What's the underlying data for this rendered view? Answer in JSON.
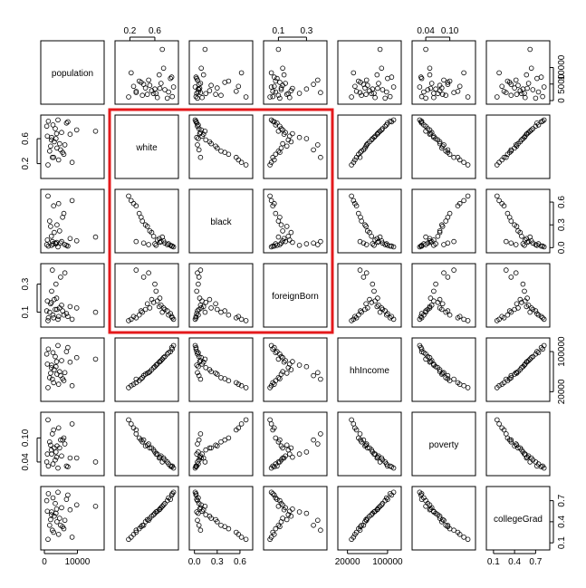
{
  "chart_data": {
    "type": "scatter",
    "variables": [
      {
        "name": "population",
        "range": [
          0,
          17000
        ]
      },
      {
        "name": "white",
        "range": [
          0.02,
          0.92
        ]
      },
      {
        "name": "black",
        "range": [
          -0.02,
          0.72
        ]
      },
      {
        "name": "foreignBorn",
        "range": [
          0.02,
          0.42
        ]
      },
      {
        "name": "hhIncome",
        "range": [
          8000,
          120000
        ]
      },
      {
        "name": "poverty",
        "range": [
          0.015,
          0.155
        ]
      },
      {
        "name": "collegeGrad",
        "range": [
          0.05,
          0.85
        ]
      }
    ],
    "axis_ticks": {
      "top": [
        {
          "panel": 1,
          "values": [
            0.2,
            0.6
          ],
          "labels": [
            "0.2",
            "0.6"
          ]
        },
        {
          "panel": 3,
          "values": [
            0.1,
            0.3
          ],
          "labels": [
            "0.1",
            "0.3"
          ]
        },
        {
          "panel": 5,
          "values": [
            0.04,
            0.1
          ],
          "labels": [
            "0.04",
            "0.10"
          ]
        }
      ],
      "right": [
        {
          "panel": 0,
          "values": [
            0,
            5000,
            10000
          ],
          "labels": [
            "0",
            "5000",
            "10000"
          ]
        },
        {
          "panel": 2,
          "values": [
            0.0,
            0.3,
            0.6
          ],
          "labels": [
            "0.0",
            "0.3",
            "0.6"
          ]
        },
        {
          "panel": 4,
          "values": [
            20000,
            100000
          ],
          "labels": [
            "20000",
            "100000"
          ]
        },
        {
          "panel": 6,
          "values": [
            0.1,
            0.4,
            0.7
          ],
          "labels": [
            "0.1",
            "0.4",
            "0.7"
          ]
        }
      ],
      "bottom": [
        {
          "panel": 0,
          "values": [
            0,
            10000
          ],
          "labels": [
            "0",
            "10000"
          ]
        },
        {
          "panel": 2,
          "values": [
            0.0,
            0.3,
            0.6
          ],
          "labels": [
            "0.0",
            "0.3",
            "0.6"
          ]
        },
        {
          "panel": 4,
          "values": [
            20000,
            100000
          ],
          "labels": [
            "20000",
            "100000"
          ]
        },
        {
          "panel": 6,
          "values": [
            0.1,
            0.4,
            0.7
          ],
          "labels": [
            "0.1",
            "0.4",
            "0.7"
          ]
        }
      ],
      "left": [
        {
          "panel": 1,
          "values": [
            0.2,
            0.6
          ],
          "labels": [
            "0.2",
            "0.6"
          ]
        },
        {
          "panel": 3,
          "values": [
            0.1,
            0.3
          ],
          "labels": [
            "0.1",
            "0.3"
          ]
        },
        {
          "panel": 5,
          "values": [
            0.04,
            0.1
          ],
          "labels": [
            "0.04",
            "0.10"
          ]
        }
      ]
    },
    "highlight": {
      "variables": [
        "white",
        "black",
        "foreignBorn"
      ],
      "color": "#e41a1c"
    },
    "observations": [
      {
        "population": 1200,
        "white": 0.88,
        "black": 0.02,
        "foreignBorn": 0.06,
        "hhIncome": 105000,
        "poverty": 0.03,
        "collegeGrad": 0.8
      },
      {
        "population": 2600,
        "white": 0.82,
        "black": 0.05,
        "foreignBorn": 0.08,
        "hhIncome": 98000,
        "poverty": 0.035,
        "collegeGrad": 0.74
      },
      {
        "population": 4100,
        "white": 0.9,
        "black": 0.01,
        "foreignBorn": 0.05,
        "hhIncome": 112000,
        "poverty": 0.025,
        "collegeGrad": 0.82
      },
      {
        "population": 3300,
        "white": 0.76,
        "black": 0.06,
        "foreignBorn": 0.12,
        "hhIncome": 90000,
        "poverty": 0.045,
        "collegeGrad": 0.66
      },
      {
        "population": 5200,
        "white": 0.7,
        "black": 0.08,
        "foreignBorn": 0.15,
        "hhIncome": 82000,
        "poverty": 0.055,
        "collegeGrad": 0.6
      },
      {
        "population": 6700,
        "white": 0.85,
        "black": 0.03,
        "foreignBorn": 0.09,
        "hhIncome": 100000,
        "poverty": 0.03,
        "collegeGrad": 0.72
      },
      {
        "population": 900,
        "white": 0.64,
        "black": 0.1,
        "foreignBorn": 0.18,
        "hhIncome": 75000,
        "poverty": 0.06,
        "collegeGrad": 0.55
      },
      {
        "population": 2100,
        "white": 0.58,
        "black": 0.15,
        "foreignBorn": 0.17,
        "hhIncome": 68000,
        "poverty": 0.07,
        "collegeGrad": 0.5
      },
      {
        "population": 7800,
        "white": 0.67,
        "black": 0.12,
        "foreignBorn": 0.14,
        "hhIncome": 79000,
        "poverty": 0.05,
        "collegeGrad": 0.57
      },
      {
        "population": 4600,
        "white": 0.52,
        "black": 0.22,
        "foreignBorn": 0.13,
        "hhIncome": 60000,
        "poverty": 0.075,
        "collegeGrad": 0.45
      },
      {
        "population": 3800,
        "white": 0.45,
        "black": 0.3,
        "foreignBorn": 0.12,
        "hhIncome": 55000,
        "poverty": 0.08,
        "collegeGrad": 0.4
      },
      {
        "population": 1600,
        "white": 0.4,
        "black": 0.35,
        "foreignBorn": 0.1,
        "hhIncome": 48000,
        "poverty": 0.09,
        "collegeGrad": 0.35
      },
      {
        "population": 5900,
        "white": 0.35,
        "black": 0.45,
        "foreignBorn": 0.08,
        "hhIncome": 42000,
        "poverty": 0.1,
        "collegeGrad": 0.3
      },
      {
        "population": 2800,
        "white": 0.3,
        "black": 0.55,
        "foreignBorn": 0.06,
        "hhIncome": 38000,
        "poverty": 0.12,
        "collegeGrad": 0.25
      },
      {
        "population": 8400,
        "white": 0.22,
        "black": 0.62,
        "foreignBorn": 0.05,
        "hhIncome": 32000,
        "poverty": 0.135,
        "collegeGrad": 0.18
      },
      {
        "population": 1100,
        "white": 0.18,
        "black": 0.68,
        "foreignBorn": 0.04,
        "hhIncome": 28000,
        "poverty": 0.145,
        "collegeGrad": 0.15
      },
      {
        "population": 3500,
        "white": 0.6,
        "black": 0.05,
        "foreignBorn": 0.3,
        "hhIncome": 70000,
        "poverty": 0.065,
        "collegeGrad": 0.52
      },
      {
        "population": 6200,
        "white": 0.5,
        "black": 0.04,
        "foreignBorn": 0.38,
        "hhIncome": 58000,
        "poverty": 0.085,
        "collegeGrad": 0.42
      },
      {
        "population": 4900,
        "white": 0.42,
        "black": 0.06,
        "foreignBorn": 0.35,
        "hhIncome": 52000,
        "poverty": 0.095,
        "collegeGrad": 0.35
      },
      {
        "population": 2400,
        "white": 0.3,
        "black": 0.08,
        "foreignBorn": 0.4,
        "hhIncome": 45000,
        "poverty": 0.11,
        "collegeGrad": 0.28
      },
      {
        "population": 15500,
        "white": 0.72,
        "black": 0.14,
        "foreignBorn": 0.1,
        "hhIncome": 85000,
        "poverty": 0.04,
        "collegeGrad": 0.62
      },
      {
        "population": 700,
        "white": 0.8,
        "black": 0.04,
        "foreignBorn": 0.11,
        "hhIncome": 95000,
        "poverty": 0.04,
        "collegeGrad": 0.7
      },
      {
        "population": 9800,
        "white": 0.74,
        "black": 0.09,
        "foreignBorn": 0.13,
        "hhIncome": 88000,
        "poverty": 0.05,
        "collegeGrad": 0.64
      },
      {
        "population": 3000,
        "white": 0.55,
        "black": 0.2,
        "foreignBorn": 0.19,
        "hhIncome": 64000,
        "poverty": 0.075,
        "collegeGrad": 0.48
      },
      {
        "population": 1900,
        "white": 0.48,
        "black": 0.28,
        "foreignBorn": 0.16,
        "hhIncome": 57000,
        "poverty": 0.082,
        "collegeGrad": 0.43
      },
      {
        "population": 5500,
        "white": 0.38,
        "black": 0.4,
        "foreignBorn": 0.11,
        "hhIncome": 46000,
        "poverty": 0.095,
        "collegeGrad": 0.33
      },
      {
        "population": 4300,
        "white": 0.26,
        "black": 0.58,
        "foreignBorn": 0.07,
        "hhIncome": 35000,
        "poverty": 0.125,
        "collegeGrad": 0.22
      },
      {
        "population": 7100,
        "white": 0.87,
        "black": 0.02,
        "foreignBorn": 0.07,
        "hhIncome": 108000,
        "poverty": 0.028,
        "collegeGrad": 0.78
      },
      {
        "population": 2200,
        "white": 0.62,
        "black": 0.03,
        "foreignBorn": 0.25,
        "hhIncome": 73000,
        "poverty": 0.06,
        "collegeGrad": 0.54
      },
      {
        "population": 3700,
        "white": 0.68,
        "black": 0.07,
        "foreignBorn": 0.2,
        "hhIncome": 80000,
        "poverty": 0.052,
        "collegeGrad": 0.58
      }
    ]
  }
}
